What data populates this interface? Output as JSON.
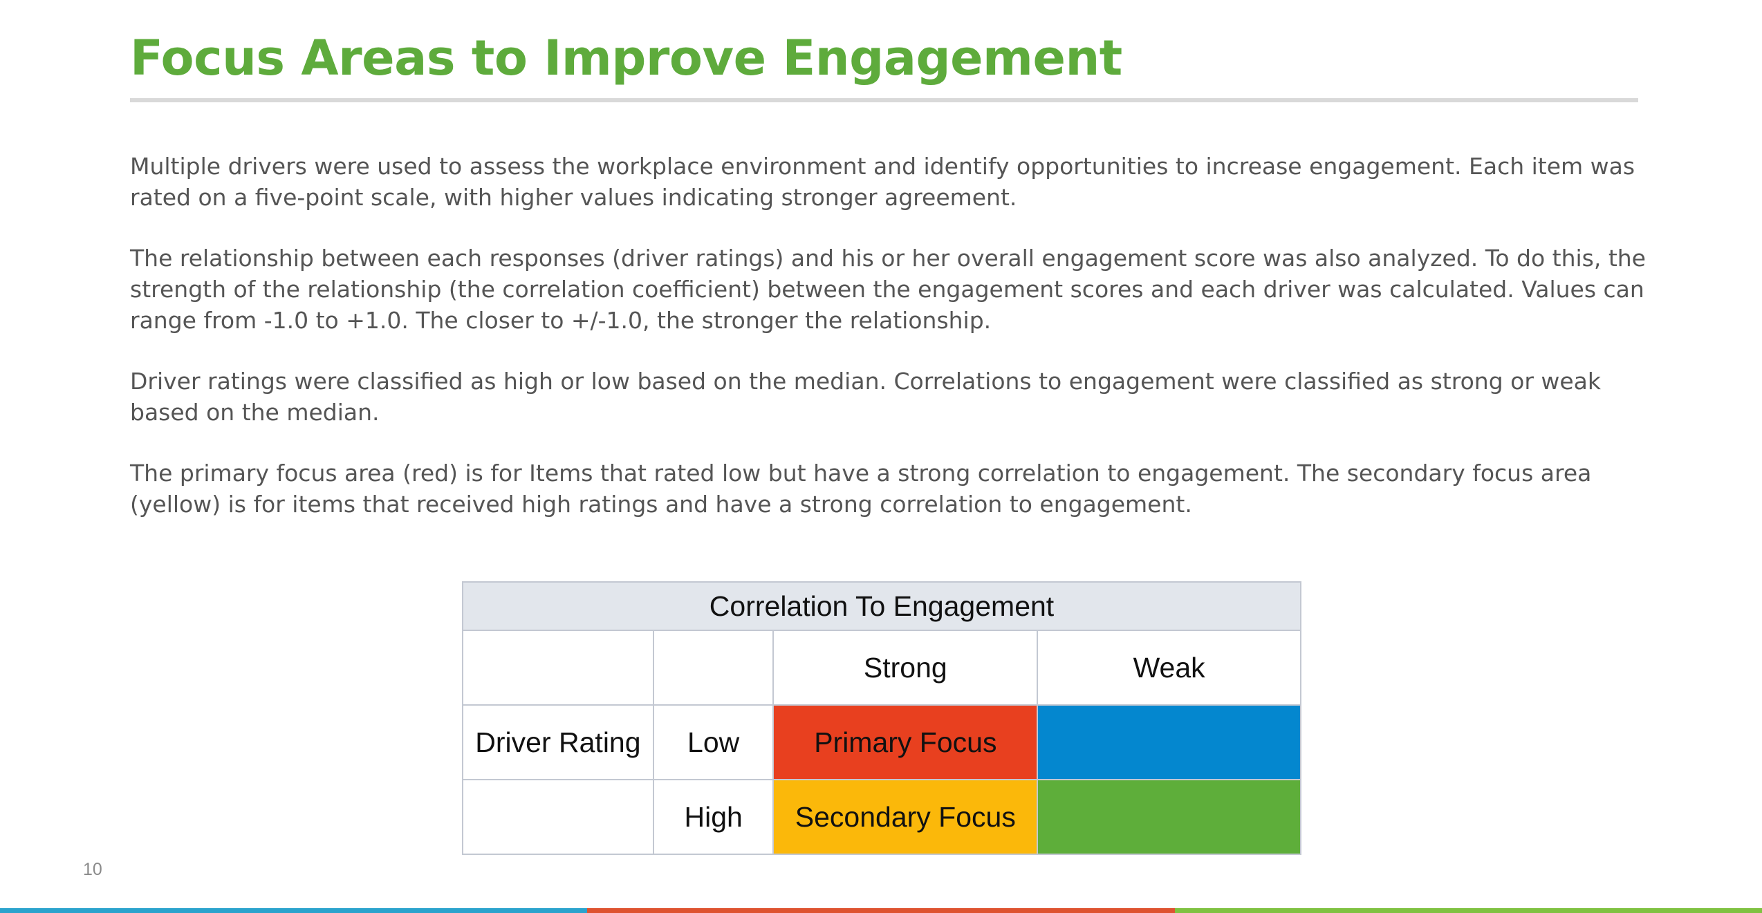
{
  "slide": {
    "title": "Focus Areas to Improve Engagement",
    "page_number": "10",
    "paragraphs": [
      "Multiple drivers were used to assess the workplace environment and identify opportunities to increase engagement. Each item was rated on a five-point scale, with higher values indicating stronger agreement.",
      "The relationship between each responses (driver ratings) and his or her overall engagement score was also analyzed. To do this, the strength of the relationship (the correlation coefficient) between the engagement scores and each driver was calculated. Values can range from -1.0 to +1.0. The closer to +/-1.0, the stronger the relationship.",
      "Driver ratings were classified as high or low based on the median. Correlations to engagement were classified as strong or weak based on the median.",
      "The primary focus area (red) is for Items that rated low but have a strong correlation to engagement. The secondary focus area (yellow) is for items that received high ratings and have a strong correlation to engagement."
    ]
  },
  "matrix": {
    "header": "Correlation To Engagement",
    "col_strong": "Strong",
    "col_weak": "Weak",
    "row_label": "Driver Rating",
    "row_low": "Low",
    "row_high": "High",
    "cell_low_strong": "Primary Focus",
    "cell_high_strong": "Secondary Focus"
  },
  "colors": {
    "title": "#5eab3c",
    "primary_focus": "#e8401f",
    "low_weak": "#0487cf",
    "secondary_focus": "#fbb80a",
    "high_weak": "#5eae3a",
    "bar": [
      "#2ba3cd",
      "#de5330",
      "#7fc241"
    ]
  }
}
